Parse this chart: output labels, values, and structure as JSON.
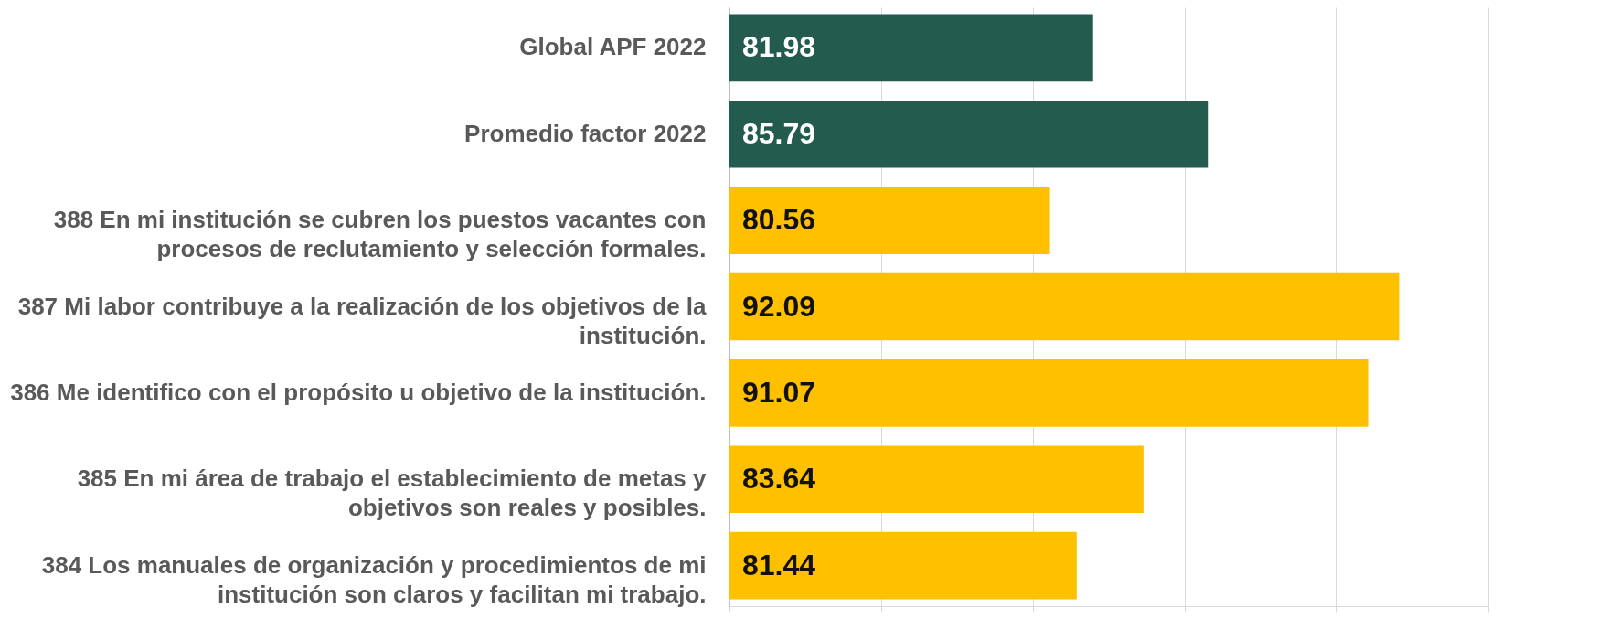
{
  "chart_data": {
    "type": "bar",
    "orientation": "horizontal",
    "categories": [
      "Global APF 2022",
      "Promedio factor 2022",
      "388 En mi institución se cubren los puestos vacantes con procesos de reclutamiento y selección formales.",
      "387 Mi labor contribuye a la realización de los objetivos de la institución.",
      "386 Me identifico con el propósito u objetivo de la institución.",
      "385 En mi área de trabajo el establecimiento de metas y objetivos son reales y posibles.",
      "384 Los manuales de organización y procedimientos de mi institución son claros y facilitan mi trabajo."
    ],
    "values": [
      81.98,
      85.79,
      80.56,
      92.09,
      91.07,
      83.64,
      81.44
    ],
    "colors": [
      "#235b4e",
      "#235b4e",
      "#ffc000",
      "#ffc000",
      "#ffc000",
      "#ffc000",
      "#ffc000"
    ],
    "xlim": [
      70,
      95
    ],
    "xticks": [
      {
        "value": 70,
        "label": null
      },
      {
        "value": 75,
        "label": null
      },
      {
        "value": 80,
        "label": null
      },
      {
        "value": 85,
        "label": null
      },
      {
        "value": 90,
        "label": null
      },
      {
        "value": 95,
        "label": null
      }
    ],
    "grid": true,
    "data_labels": true,
    "tick_labels": "y"
  }
}
